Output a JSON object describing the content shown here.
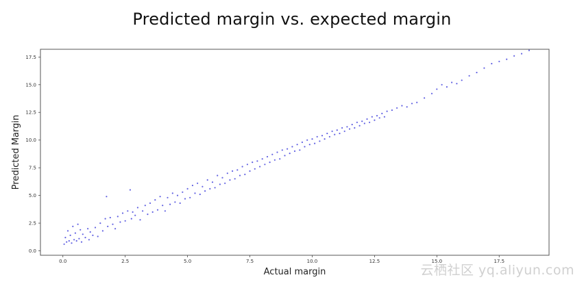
{
  "page": {
    "title": "Predicted margin vs. expected margin",
    "watermark": "云栖社区 yq.aliyun.com"
  },
  "colors": {
    "points": "#1f1fd6",
    "frame": "#555555",
    "background": "#ffffff"
  },
  "chart_data": {
    "type": "scatter",
    "title": "",
    "xlabel": "Actual margin",
    "ylabel": "Predicted Margin",
    "xlim": [
      -0.9,
      19.5
    ],
    "ylim": [
      -0.4,
      18.2
    ],
    "xticks": [
      0.0,
      2.5,
      5.0,
      7.5,
      10.0,
      12.5,
      15.0,
      17.5
    ],
    "xtick_labels": [
      "0.0",
      "2.5",
      "5.0",
      "7.5",
      "10.0",
      "12.5",
      "15.0",
      "17.5"
    ],
    "yticks": [
      0.0,
      2.5,
      5.0,
      7.5,
      10.0,
      12.5,
      15.0,
      17.5
    ],
    "ytick_labels": [
      "0.0",
      "2.5",
      "5.0",
      "7.5",
      "10.0",
      "12.5",
      "15.0",
      "17.5"
    ],
    "grid": false,
    "legend": "none",
    "marker": "small dots",
    "series": [
      {
        "points": [
          [
            0.05,
            0.6
          ],
          [
            0.1,
            1.2
          ],
          [
            0.15,
            0.8
          ],
          [
            0.2,
            1.8
          ],
          [
            0.25,
            0.9
          ],
          [
            0.3,
            1.4
          ],
          [
            0.35,
            0.7
          ],
          [
            0.4,
            2.2
          ],
          [
            0.45,
            1.0
          ],
          [
            0.5,
            1.6
          ],
          [
            0.55,
            0.9
          ],
          [
            0.6,
            2.4
          ],
          [
            0.65,
            1.1
          ],
          [
            0.7,
            1.9
          ],
          [
            0.75,
            0.8
          ],
          [
            0.8,
            1.5
          ],
          [
            0.9,
            1.2
          ],
          [
            1.0,
            2.0
          ],
          [
            1.05,
            1.0
          ],
          [
            1.1,
            1.7
          ],
          [
            1.2,
            1.4
          ],
          [
            1.3,
            2.1
          ],
          [
            1.4,
            1.3
          ],
          [
            1.5,
            2.5
          ],
          [
            1.6,
            1.8
          ],
          [
            1.7,
            2.9
          ],
          [
            1.75,
            4.9
          ],
          [
            1.8,
            2.2
          ],
          [
            1.9,
            3.0
          ],
          [
            2.0,
            2.4
          ],
          [
            2.1,
            2.0
          ],
          [
            2.2,
            3.1
          ],
          [
            2.3,
            2.6
          ],
          [
            2.4,
            3.4
          ],
          [
            2.5,
            2.7
          ],
          [
            2.6,
            3.6
          ],
          [
            2.7,
            5.5
          ],
          [
            2.75,
            2.9
          ],
          [
            2.8,
            3.5
          ],
          [
            2.9,
            3.2
          ],
          [
            3.0,
            3.9
          ],
          [
            3.1,
            2.8
          ],
          [
            3.2,
            3.6
          ],
          [
            3.3,
            4.1
          ],
          [
            3.4,
            3.3
          ],
          [
            3.5,
            4.3
          ],
          [
            3.6,
            3.5
          ],
          [
            3.7,
            4.6
          ],
          [
            3.8,
            3.7
          ],
          [
            3.9,
            4.9
          ],
          [
            4.0,
            4.1
          ],
          [
            4.1,
            3.6
          ],
          [
            4.2,
            4.8
          ],
          [
            4.3,
            4.2
          ],
          [
            4.4,
            5.2
          ],
          [
            4.5,
            4.4
          ],
          [
            4.6,
            5.0
          ],
          [
            4.7,
            4.3
          ],
          [
            4.8,
            5.3
          ],
          [
            4.9,
            4.7
          ],
          [
            5.0,
            5.6
          ],
          [
            5.1,
            4.8
          ],
          [
            5.2,
            5.9
          ],
          [
            5.3,
            5.2
          ],
          [
            5.4,
            6.1
          ],
          [
            5.5,
            5.1
          ],
          [
            5.6,
            5.8
          ],
          [
            5.7,
            5.4
          ],
          [
            5.8,
            6.4
          ],
          [
            5.9,
            5.6
          ],
          [
            6.0,
            6.2
          ],
          [
            6.1,
            5.7
          ],
          [
            6.2,
            6.8
          ],
          [
            6.3,
            6.0
          ],
          [
            6.4,
            6.6
          ],
          [
            6.5,
            6.1
          ],
          [
            6.6,
            7.0
          ],
          [
            6.7,
            6.4
          ],
          [
            6.8,
            7.2
          ],
          [
            6.9,
            6.5
          ],
          [
            7.0,
            7.3
          ],
          [
            7.1,
            6.8
          ],
          [
            7.2,
            7.6
          ],
          [
            7.3,
            6.9
          ],
          [
            7.4,
            7.8
          ],
          [
            7.5,
            7.2
          ],
          [
            7.6,
            8.0
          ],
          [
            7.7,
            7.4
          ],
          [
            7.8,
            8.1
          ],
          [
            7.9,
            7.6
          ],
          [
            8.0,
            8.3
          ],
          [
            8.1,
            7.8
          ],
          [
            8.2,
            8.5
          ],
          [
            8.3,
            8.0
          ],
          [
            8.4,
            8.7
          ],
          [
            8.5,
            8.2
          ],
          [
            8.6,
            8.9
          ],
          [
            8.7,
            8.3
          ],
          [
            8.8,
            9.1
          ],
          [
            8.9,
            8.6
          ],
          [
            9.0,
            9.2
          ],
          [
            9.1,
            8.8
          ],
          [
            9.2,
            9.4
          ],
          [
            9.3,
            9.0
          ],
          [
            9.4,
            9.6
          ],
          [
            9.5,
            9.1
          ],
          [
            9.6,
            9.8
          ],
          [
            9.7,
            9.4
          ],
          [
            9.8,
            10.0
          ],
          [
            9.9,
            9.6
          ],
          [
            10.0,
            10.1
          ],
          [
            10.1,
            9.7
          ],
          [
            10.2,
            10.3
          ],
          [
            10.3,
            9.9
          ],
          [
            10.4,
            10.4
          ],
          [
            10.5,
            10.1
          ],
          [
            10.6,
            10.6
          ],
          [
            10.7,
            10.3
          ],
          [
            10.8,
            10.8
          ],
          [
            10.9,
            10.5
          ],
          [
            11.0,
            10.9
          ],
          [
            11.1,
            10.6
          ],
          [
            11.2,
            11.1
          ],
          [
            11.3,
            10.8
          ],
          [
            11.4,
            11.2
          ],
          [
            11.5,
            11.0
          ],
          [
            11.6,
            11.4
          ],
          [
            11.7,
            11.1
          ],
          [
            11.8,
            11.6
          ],
          [
            11.9,
            11.3
          ],
          [
            12.0,
            11.7
          ],
          [
            12.1,
            11.5
          ],
          [
            12.2,
            11.9
          ],
          [
            12.3,
            11.6
          ],
          [
            12.4,
            12.1
          ],
          [
            12.5,
            11.8
          ],
          [
            12.6,
            12.2
          ],
          [
            12.7,
            12.0
          ],
          [
            12.8,
            12.4
          ],
          [
            12.9,
            12.1
          ],
          [
            13.0,
            12.6
          ],
          [
            13.2,
            12.7
          ],
          [
            13.4,
            12.9
          ],
          [
            13.6,
            13.1
          ],
          [
            13.8,
            13.0
          ],
          [
            14.0,
            13.3
          ],
          [
            14.2,
            13.4
          ],
          [
            14.5,
            13.8
          ],
          [
            14.8,
            14.2
          ],
          [
            15.0,
            14.6
          ],
          [
            15.2,
            15.0
          ],
          [
            15.4,
            14.8
          ],
          [
            15.6,
            15.2
          ],
          [
            15.8,
            15.1
          ],
          [
            16.0,
            15.4
          ],
          [
            16.3,
            15.8
          ],
          [
            16.6,
            16.1
          ],
          [
            16.9,
            16.5
          ],
          [
            17.2,
            16.9
          ],
          [
            17.5,
            17.1
          ],
          [
            17.8,
            17.3
          ],
          [
            18.1,
            17.6
          ],
          [
            18.4,
            17.8
          ],
          [
            18.7,
            18.1
          ]
        ]
      }
    ]
  }
}
